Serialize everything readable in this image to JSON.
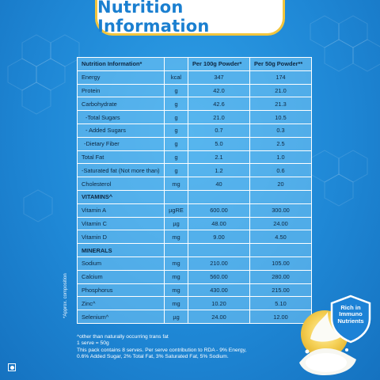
{
  "title": "Nutrition Information",
  "table": {
    "headers": [
      "Nutrition Information*",
      "",
      "Per 100g Powder*",
      "Per 50g Powder**"
    ],
    "rows": [
      {
        "name": "Energy",
        "unit": "kcal",
        "per100": "347",
        "per50": "174"
      },
      {
        "name": "Protein",
        "unit": "g",
        "per100": "42.0",
        "per50": "21.0"
      },
      {
        "name": "Carbohydrate",
        "unit": "g",
        "per100": "42.6",
        "per50": "21.3"
      },
      {
        "name": "-Total Sugars",
        "unit": "g",
        "per100": "21.0",
        "per50": "10.5"
      },
      {
        "name": "- Added Sugars",
        "unit": "g",
        "per100": "0.7",
        "per50": "0.3"
      },
      {
        "name": "-Dietary Fiber",
        "unit": "g",
        "per100": "5.0",
        "per50": "2.5"
      },
      {
        "name": "Total Fat",
        "unit": "g",
        "per100": "2.1",
        "per50": "1.0"
      },
      {
        "name": "-Saturated fat (Not more than)",
        "unit": "g",
        "per100": "1.2",
        "per50": "0.6"
      },
      {
        "name": "Cholesterol",
        "unit": "mg",
        "per100": "40",
        "per50": "20"
      },
      {
        "name": "VITAMINS^",
        "unit": "",
        "per100": "",
        "per50": ""
      },
      {
        "name": "Vitamin A",
        "unit": "µgRE",
        "per100": "600.00",
        "per50": "300.00"
      },
      {
        "name": "Vitamin C",
        "unit": "µg",
        "per100": "48.00",
        "per50": "24.00"
      },
      {
        "name": "Vitamin D",
        "unit": "mg",
        "per100": "9.00",
        "per50": "4.50"
      },
      {
        "name": "MINERALS",
        "unit": "",
        "per100": "",
        "per50": ""
      },
      {
        "name": "Sodium",
        "unit": "mg",
        "per100": "210.00",
        "per50": "105.00"
      },
      {
        "name": "Calcium",
        "unit": "mg",
        "per100": "560.00",
        "per50": "280.00"
      },
      {
        "name": "Phosphorus",
        "unit": "mg",
        "per100": "430.00",
        "per50": "215.00"
      },
      {
        "name": "Zinc^",
        "unit": "mg",
        "per100": "10.20",
        "per50": "5.10"
      },
      {
        "name": "Selenium^",
        "unit": "µg",
        "per100": "24.00",
        "per50": "12.00"
      }
    ]
  },
  "side_note": "*Approx. composition",
  "footnotes": [
    "^other than naturally occurring trans fat",
    "1 serve = 50g",
    "This pack contains 8 serves. Per serve contribution to RDA - 9% Energy,",
    "0.6% Added Sugar, 2% Total Fat, 3% Saturated Fat, 5% Sodium."
  ],
  "badge": {
    "line1": "Rich in",
    "line2": "Immuno",
    "line3": "Nutrients"
  },
  "colors": {
    "background": "#1f88d6",
    "title": "#1a7fd0",
    "title_border": "#f2c53d",
    "badge": "#1c82d6"
  },
  "icons": [
    "veg-mark-icon",
    "shield-icon",
    "milk-splash-icon"
  ]
}
